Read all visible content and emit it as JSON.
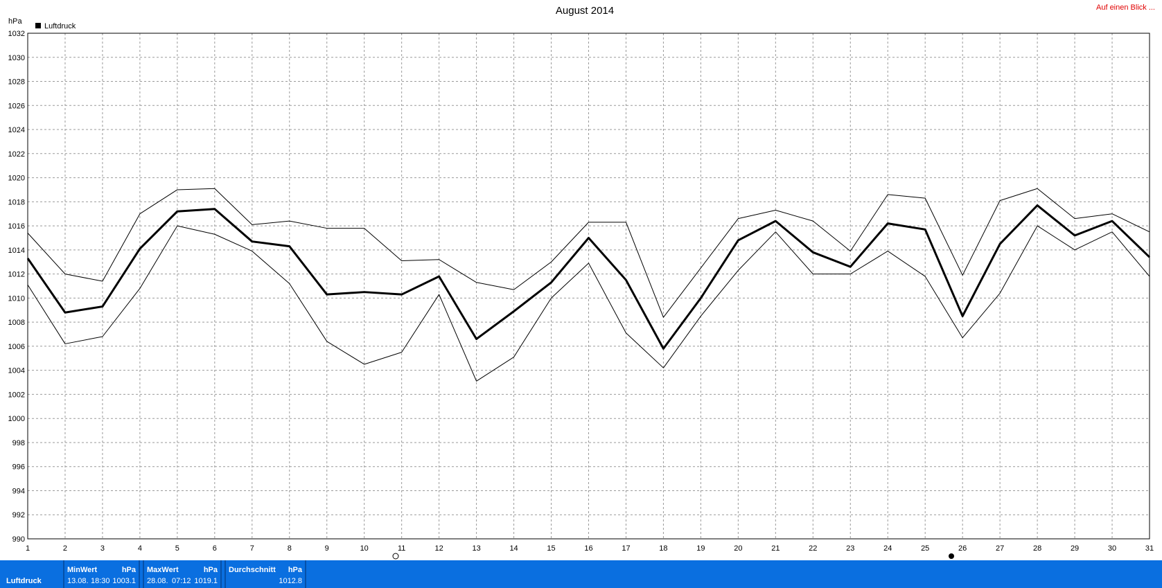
{
  "chart_data": {
    "type": "line",
    "title": "August 2014",
    "ylabel": "hPa",
    "legend": "Luftdruck",
    "link": "Auf einen Blick ...",
    "x": [
      1,
      2,
      3,
      4,
      5,
      6,
      7,
      8,
      9,
      10,
      11,
      12,
      13,
      14,
      15,
      16,
      17,
      18,
      19,
      20,
      21,
      22,
      23,
      24,
      25,
      26,
      27,
      28,
      29,
      30,
      31
    ],
    "xlim": [
      1,
      31
    ],
    "xticks": [
      1,
      2,
      3,
      4,
      5,
      6,
      7,
      8,
      9,
      10,
      11,
      12,
      13,
      14,
      15,
      16,
      17,
      18,
      19,
      20,
      21,
      22,
      23,
      24,
      25,
      26,
      27,
      28,
      29,
      30,
      31
    ],
    "ylim": [
      990,
      1032
    ],
    "yticks": [
      990,
      992,
      994,
      996,
      998,
      1000,
      1002,
      1004,
      1006,
      1008,
      1010,
      1012,
      1014,
      1016,
      1018,
      1020,
      1022,
      1024,
      1026,
      1028,
      1030,
      1032
    ],
    "grid": true,
    "series": [
      {
        "color": "#000000",
        "line_width": 1,
        "values": [
          1015.4,
          1012.0,
          1011.4,
          1017.0,
          1019.0,
          1019.1,
          1016.1,
          1016.4,
          1015.8,
          1015.8,
          1013.1,
          1013.2,
          1011.3,
          1010.7,
          1013.0,
          1016.3,
          1016.3,
          1008.4,
          1012.5,
          1016.6,
          1017.3,
          1016.4,
          1013.9,
          1018.6,
          1018.3,
          1011.9,
          1018.1,
          1019.1,
          1016.6,
          1017.0,
          1015.5
        ]
      },
      {
        "color": "#000000",
        "line_width": 3,
        "values": [
          1013.3,
          1008.8,
          1009.3,
          1014.1,
          1017.2,
          1017.4,
          1014.7,
          1014.3,
          1010.3,
          1010.5,
          1010.3,
          1011.8,
          1006.6,
          1008.9,
          1011.3,
          1015.0,
          1011.5,
          1005.8,
          1010.0,
          1014.8,
          1016.4,
          1013.8,
          1012.6,
          1016.2,
          1015.7,
          1008.5,
          1014.5,
          1017.7,
          1015.2,
          1016.4,
          1013.4
        ]
      },
      {
        "color": "#000000",
        "line_width": 1,
        "values": [
          1011.1,
          1006.2,
          1006.8,
          1010.8,
          1016.0,
          1015.3,
          1013.9,
          1011.2,
          1006.4,
          1004.5,
          1005.5,
          1010.3,
          1003.1,
          1005.1,
          1010.0,
          1012.9,
          1007.1,
          1004.2,
          1008.5,
          1012.3,
          1015.5,
          1012.0,
          1012.0,
          1013.9,
          1011.8,
          1006.7,
          1010.4,
          1016.0,
          1014.0,
          1015.5,
          1011.8
        ]
      }
    ]
  },
  "summary": {
    "label": "Luftdruck",
    "min": {
      "title": "MinWert",
      "unit": "hPa",
      "date": "13.08.",
      "time": "18:30",
      "value": 1003.1
    },
    "max": {
      "title": "MaxWert",
      "unit": "hPa",
      "date": "28.08.",
      "time": "07:12",
      "value": 1019.1
    },
    "avg": {
      "title": "Durchschnitt",
      "unit": "hPa",
      "value": 1012.8
    }
  }
}
